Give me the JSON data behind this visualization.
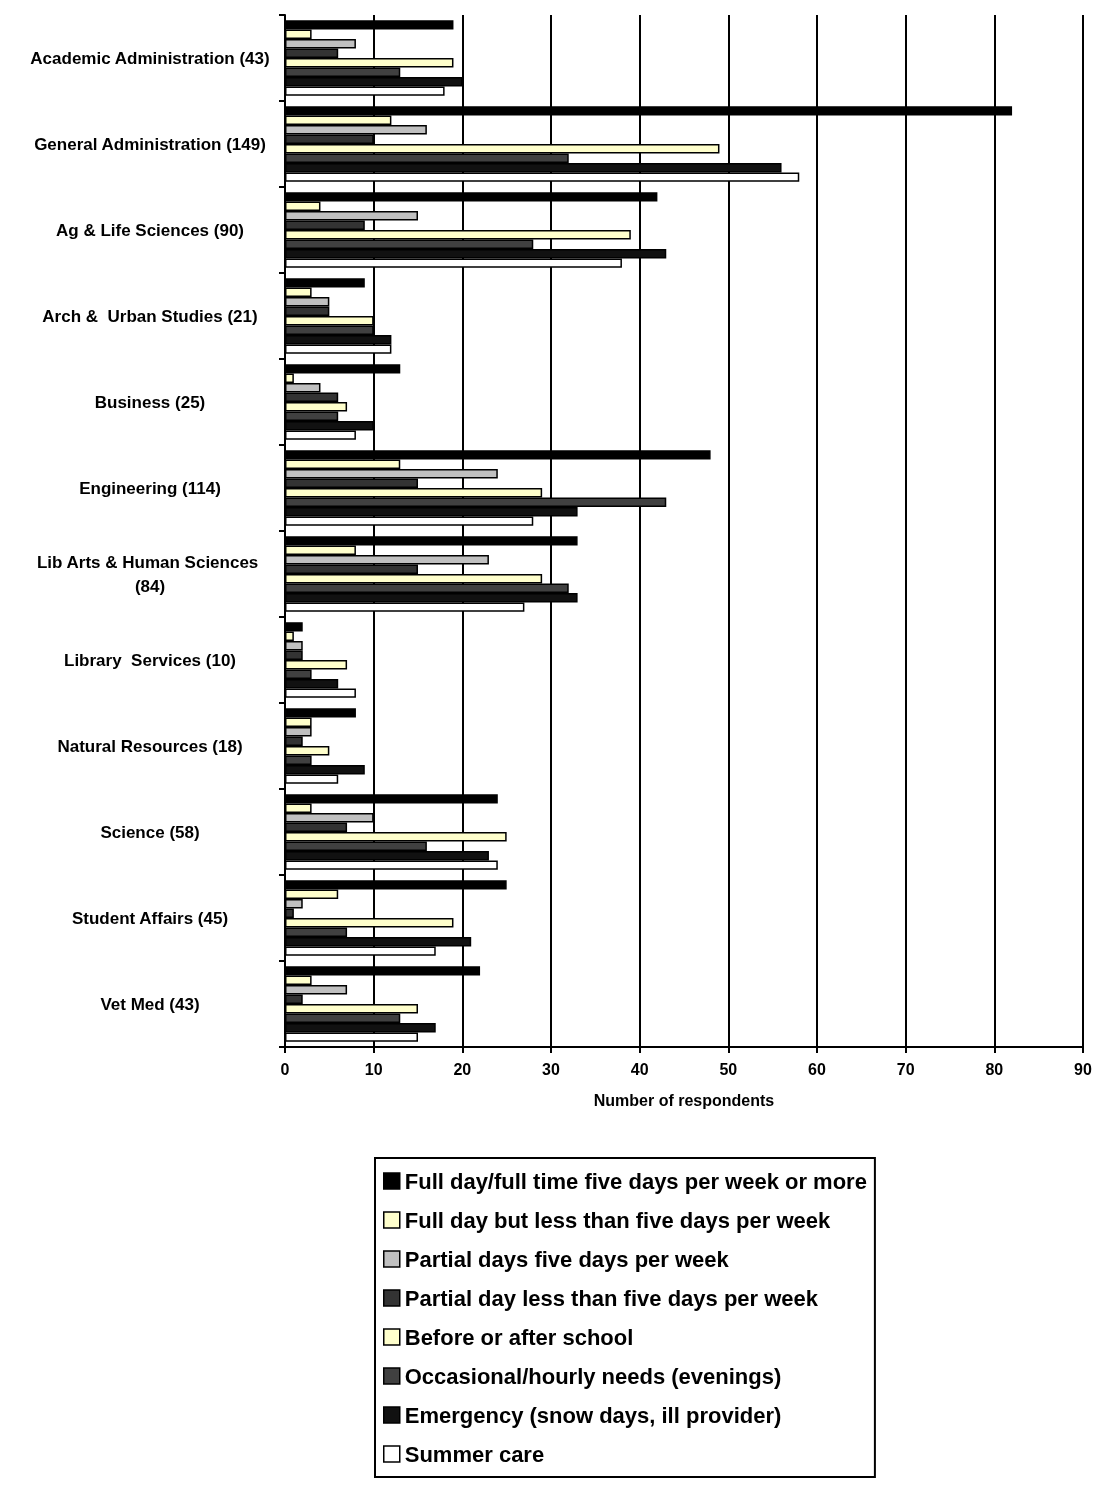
{
  "chart_data": {
    "type": "bar",
    "orientation": "horizontal",
    "xlabel": "Number of respondents",
    "categories": [
      "Academic Administration (43)",
      "General Administration (149)",
      "Ag & Life Sciences (90)",
      "Arch &  Urban Studies (21)",
      "Business (25)",
      "Engineering (114)",
      "Lib Arts & Human Sciences (84)",
      "Library  Services (10)",
      "Natural Resources (18)",
      "Science (58)",
      "Student Affairs (45)",
      "Vet Med (43)"
    ],
    "series": [
      {
        "name": "Full day/full time five days per week or more",
        "color": "#000000",
        "values": [
          19,
          82,
          42,
          9,
          13,
          48,
          33,
          2,
          8,
          24,
          25,
          22
        ]
      },
      {
        "name": "Full day but less than five days per week",
        "color": "#ffffcc",
        "values": [
          3,
          12,
          4,
          3,
          1,
          13,
          8,
          1,
          3,
          3,
          6,
          3
        ]
      },
      {
        "name": "Partial days five days per week",
        "color": "#c0c0c0",
        "values": [
          8,
          16,
          15,
          5,
          4,
          24,
          23,
          2,
          3,
          10,
          2,
          7
        ]
      },
      {
        "name": "Partial day less than five days per week",
        "color": "#333333",
        "values": [
          6,
          10,
          9,
          5,
          6,
          15,
          15,
          2,
          2,
          7,
          1,
          2
        ]
      },
      {
        "name": "Before or after school",
        "color": "#ffffcc",
        "values": [
          19,
          49,
          39,
          10,
          7,
          29,
          29,
          7,
          5,
          25,
          19,
          15
        ]
      },
      {
        "name": "Occasional/hourly needs (evenings)",
        "color": "#404040",
        "values": [
          13,
          32,
          28,
          10,
          6,
          43,
          32,
          3,
          3,
          16,
          7,
          13
        ]
      },
      {
        "name": "Emergency (snow days, ill provider)",
        "color": "#111111",
        "values": [
          20,
          56,
          43,
          12,
          10,
          33,
          33,
          6,
          9,
          23,
          21,
          17
        ]
      },
      {
        "name": "Summer care",
        "color": "#ffffff",
        "values": [
          18,
          58,
          38,
          12,
          8,
          28,
          27,
          8,
          6,
          24,
          17,
          15
        ]
      }
    ],
    "xlim": [
      0,
      90
    ],
    "xticks": [
      0,
      10,
      20,
      30,
      40,
      50,
      60,
      70,
      80,
      90
    ],
    "grid": "x",
    "legend": "bottom"
  }
}
